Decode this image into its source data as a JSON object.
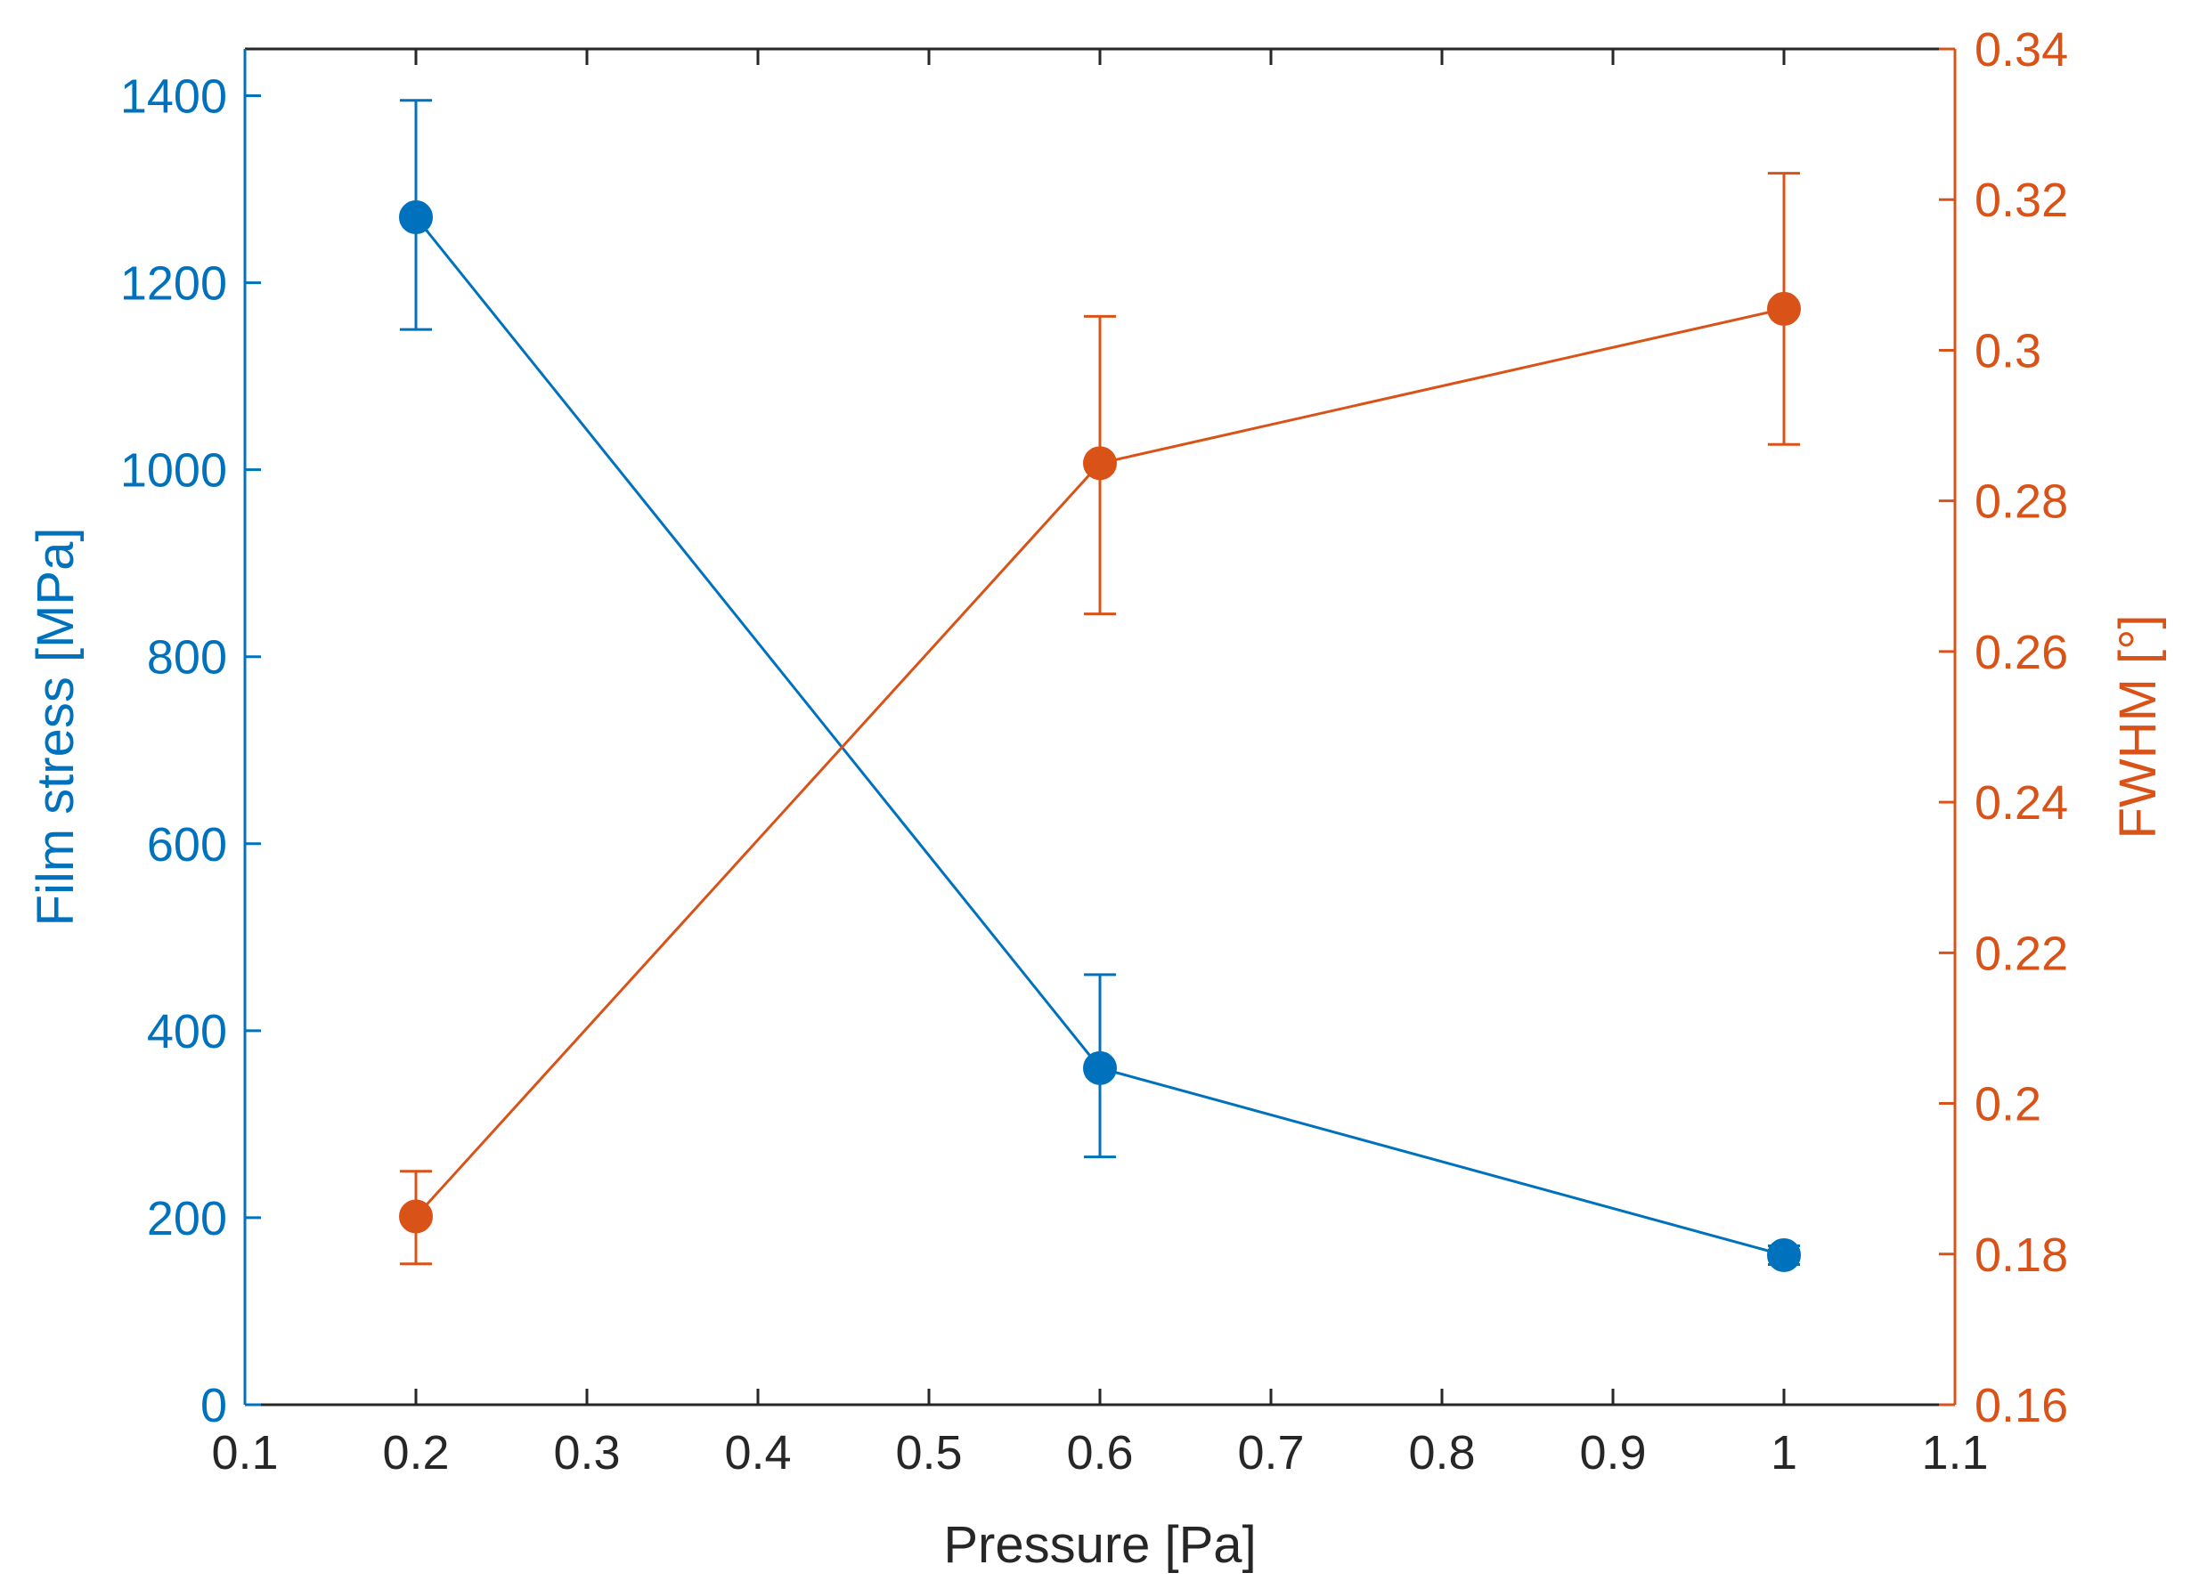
{
  "chart_data": {
    "type": "line",
    "xlabel": "Pressure [Pa]",
    "ylabel_left": "Film stress [MPa]",
    "ylabel_right": "FWHM [°]",
    "xlim": [
      0.1,
      1.1
    ],
    "ylim_left": [
      0,
      1450
    ],
    "ylim_right": [
      0.16,
      0.34
    ],
    "x_ticks": [
      "0.1",
      "0.2",
      "0.3",
      "0.4",
      "0.5",
      "0.6",
      "0.7",
      "0.8",
      "0.9",
      "1",
      "1.1"
    ],
    "y_left_ticks": [
      "0",
      "200",
      "400",
      "600",
      "800",
      "1000",
      "1200",
      "1400"
    ],
    "y_right_ticks": [
      "0.16",
      "0.18",
      "0.2",
      "0.22",
      "0.24",
      "0.26",
      "0.28",
      "0.3",
      "0.32",
      "0.34"
    ],
    "grid": false,
    "colors": {
      "left": "#0072BD",
      "right": "#D95319",
      "axis": "#262626"
    },
    "series": [
      {
        "axis": "left",
        "x": [
          0.2,
          0.6,
          1.0
        ],
        "y": [
          1270,
          360,
          160
        ],
        "err_low": [
          1150,
          265,
          150
        ],
        "err_high": [
          1395,
          460,
          170
        ]
      },
      {
        "axis": "right",
        "x": [
          0.2,
          0.6,
          1.0
        ],
        "y": [
          0.185,
          0.285,
          0.3055
        ],
        "err_low": [
          0.1787,
          0.265,
          0.2875
        ],
        "err_high": [
          0.191,
          0.3045,
          0.3235
        ]
      }
    ]
  }
}
